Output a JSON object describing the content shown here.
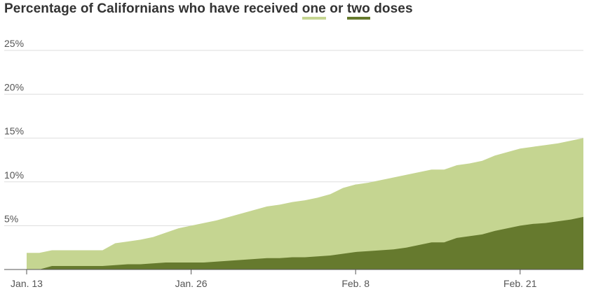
{
  "title": {
    "prefix": "Percentage of Californians who have received ",
    "one": "one",
    "middle": " or ",
    "two": "two",
    "suffix": " doses"
  },
  "colors": {
    "one_dose": "#c5d591",
    "two_doses": "#667a2e"
  },
  "chart_data": {
    "type": "area",
    "title": "Percentage of Californians who have received one or two doses",
    "xlabel": "",
    "ylabel": "",
    "ylim": [
      0,
      25
    ],
    "yticks": [
      5,
      10,
      15,
      20,
      25
    ],
    "ytick_labels": [
      "5%",
      "10%",
      "15%",
      "20%",
      "25%"
    ],
    "xtick_labels": [
      {
        "label": "Jan. 13",
        "index": 0
      },
      {
        "label": "Jan. 26",
        "index": 13
      },
      {
        "label": "Feb. 8",
        "index": 26
      },
      {
        "label": "Feb. 21",
        "index": 39
      }
    ],
    "grid": true,
    "stacked": false,
    "x": [
      "Jan. 13",
      "Jan. 14",
      "Jan. 15",
      "Jan. 16",
      "Jan. 17",
      "Jan. 18",
      "Jan. 19",
      "Jan. 20",
      "Jan. 21",
      "Jan. 22",
      "Jan. 23",
      "Jan. 24",
      "Jan. 25",
      "Jan. 26",
      "Jan. 27",
      "Jan. 28",
      "Jan. 29",
      "Jan. 30",
      "Jan. 31",
      "Feb. 1",
      "Feb. 2",
      "Feb. 3",
      "Feb. 4",
      "Feb. 5",
      "Feb. 6",
      "Feb. 7",
      "Feb. 8",
      "Feb. 9",
      "Feb. 10",
      "Feb. 11",
      "Feb. 12",
      "Feb. 13",
      "Feb. 14",
      "Feb. 15",
      "Feb. 16",
      "Feb. 17",
      "Feb. 18",
      "Feb. 19",
      "Feb. 20",
      "Feb. 21",
      "Feb. 22",
      "Feb. 23",
      "Feb. 24",
      "Feb. 25",
      "Feb. 26"
    ],
    "series": [
      {
        "key": "one",
        "values": [
          1.9,
          1.9,
          2.2,
          2.2,
          2.2,
          2.2,
          2.2,
          3.0,
          3.2,
          3.4,
          3.7,
          4.2,
          4.7,
          5.0,
          5.3,
          5.6,
          6.0,
          6.4,
          6.8,
          7.2,
          7.4,
          7.7,
          7.9,
          8.2,
          8.6,
          9.3,
          9.7,
          9.9,
          10.2,
          10.5,
          10.8,
          11.1,
          11.4,
          11.4,
          11.9,
          12.1,
          12.4,
          13.0,
          13.4,
          13.8,
          14.0,
          14.2,
          14.4,
          14.7,
          15.0
        ]
      },
      {
        "key": "two",
        "values": [
          0.0,
          0.0,
          0.4,
          0.4,
          0.4,
          0.4,
          0.4,
          0.5,
          0.6,
          0.6,
          0.7,
          0.8,
          0.8,
          0.8,
          0.8,
          0.9,
          1.0,
          1.1,
          1.2,
          1.3,
          1.3,
          1.4,
          1.4,
          1.5,
          1.6,
          1.8,
          2.0,
          2.1,
          2.2,
          2.3,
          2.5,
          2.8,
          3.1,
          3.1,
          3.6,
          3.8,
          4.0,
          4.4,
          4.7,
          5.0,
          5.2,
          5.3,
          5.5,
          5.7,
          6.0
        ]
      }
    ]
  }
}
